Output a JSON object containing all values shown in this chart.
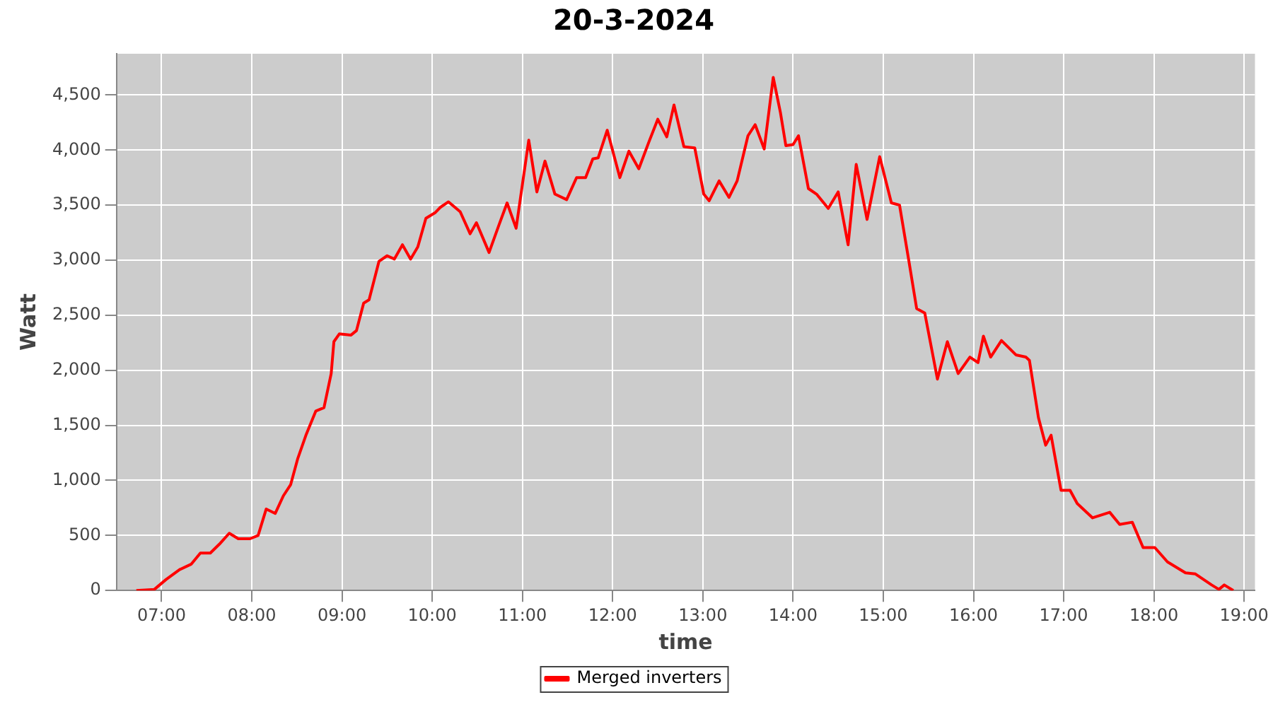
{
  "chart_data": {
    "type": "line",
    "title": "20-3-2024",
    "xlabel": "time",
    "ylabel": "Watt",
    "xlim": [
      6.5,
      19.12
    ],
    "ylim": [
      0,
      4875
    ],
    "xticks": [
      {
        "value": 7,
        "label": "07:00"
      },
      {
        "value": 8,
        "label": "08:00"
      },
      {
        "value": 9,
        "label": "09:00"
      },
      {
        "value": 10,
        "label": "10:00"
      },
      {
        "value": 11,
        "label": "11:00"
      },
      {
        "value": 12,
        "label": "12:00"
      },
      {
        "value": 13,
        "label": "13:00"
      },
      {
        "value": 14,
        "label": "14:00"
      },
      {
        "value": 15,
        "label": "15:00"
      },
      {
        "value": 16,
        "label": "16:00"
      },
      {
        "value": 17,
        "label": "17:00"
      },
      {
        "value": 18,
        "label": "18:00"
      },
      {
        "value": 19,
        "label": "19:00"
      }
    ],
    "yticks": [
      {
        "value": 0,
        "label": "0"
      },
      {
        "value": 500,
        "label": "500"
      },
      {
        "value": 1000,
        "label": "1,000"
      },
      {
        "value": 1500,
        "label": "1,500"
      },
      {
        "value": 2000,
        "label": "2,000"
      },
      {
        "value": 2500,
        "label": "2,500"
      },
      {
        "value": 3000,
        "label": "3,000"
      },
      {
        "value": 3500,
        "label": "3,500"
      },
      {
        "value": 4000,
        "label": "4,000"
      },
      {
        "value": 4500,
        "label": "4,500"
      }
    ],
    "grid": true,
    "legend": "bottom",
    "marker": "none",
    "line_style": "solid",
    "series": [
      {
        "name": "Merged inverters",
        "color": "#ff0000",
        "x": [
          6.72,
          6.92,
          7.05,
          7.2,
          7.33,
          7.43,
          7.54,
          7.64,
          7.75,
          7.85,
          7.98,
          8.07,
          8.16,
          8.26,
          8.35,
          8.43,
          8.51,
          8.6,
          8.71,
          8.8,
          8.88,
          8.91,
          8.97,
          9.1,
          9.16,
          9.24,
          9.3,
          9.41,
          9.5,
          9.58,
          9.67,
          9.76,
          9.84,
          9.93,
          10.03,
          10.09,
          10.18,
          10.31,
          10.42,
          10.49,
          10.63,
          10.74,
          10.83,
          10.93,
          11,
          11.07,
          11.16,
          11.25,
          11.36,
          11.49,
          11.6,
          11.7,
          11.78,
          11.84,
          11.94,
          12.08,
          12.18,
          12.29,
          12.4,
          12.5,
          12.6,
          12.68,
          12.79,
          12.91,
          13.01,
          13.07,
          13.18,
          13.29,
          13.38,
          13.5,
          13.58,
          13.68,
          13.78,
          13.86,
          13.92,
          14,
          14.06,
          14.17,
          14.26,
          14.39,
          14.5,
          14.61,
          14.7,
          14.82,
          14.96,
          15.09,
          15.18,
          15.28,
          15.37,
          15.46,
          15.6,
          15.71,
          15.83,
          15.96,
          16.05,
          16.11,
          16.19,
          16.31,
          16.47,
          16.58,
          16.62,
          16.72,
          16.8,
          16.86,
          16.97,
          17.07,
          17.15,
          17.32,
          17.51,
          17.62,
          17.76,
          17.88,
          18.01,
          18.15,
          18.35,
          18.46,
          18.64,
          18.72,
          18.78,
          18.88
        ],
        "values": [
          0,
          10,
          100,
          190,
          240,
          340,
          340,
          420,
          520,
          470,
          470,
          500,
          740,
          700,
          860,
          960,
          1200,
          1410,
          1630,
          1660,
          1970,
          2260,
          2330,
          2320,
          2360,
          2610,
          2640,
          2990,
          3040,
          3010,
          3140,
          3010,
          3120,
          3380,
          3430,
          3480,
          3530,
          3440,
          3240,
          3340,
          3070,
          3320,
          3520,
          3290,
          3690,
          4090,
          3620,
          3900,
          3600,
          3550,
          3750,
          3750,
          3920,
          3930,
          4180,
          3750,
          3990,
          3830,
          4070,
          4280,
          4120,
          4410,
          4030,
          4020,
          3600,
          3540,
          3720,
          3570,
          3720,
          4130,
          4230,
          4010,
          4660,
          4340,
          4040,
          4050,
          4130,
          3650,
          3600,
          3470,
          3620,
          3140,
          3870,
          3370,
          3940,
          3520,
          3500,
          3010,
          2560,
          2520,
          1920,
          2260,
          1970,
          2120,
          2070,
          2310,
          2120,
          2270,
          2140,
          2120,
          2090,
          1570,
          1320,
          1410,
          910,
          910,
          790,
          660,
          710,
          600,
          620,
          390,
          390,
          260,
          160,
          150,
          50,
          10,
          50,
          0
        ]
      }
    ]
  }
}
